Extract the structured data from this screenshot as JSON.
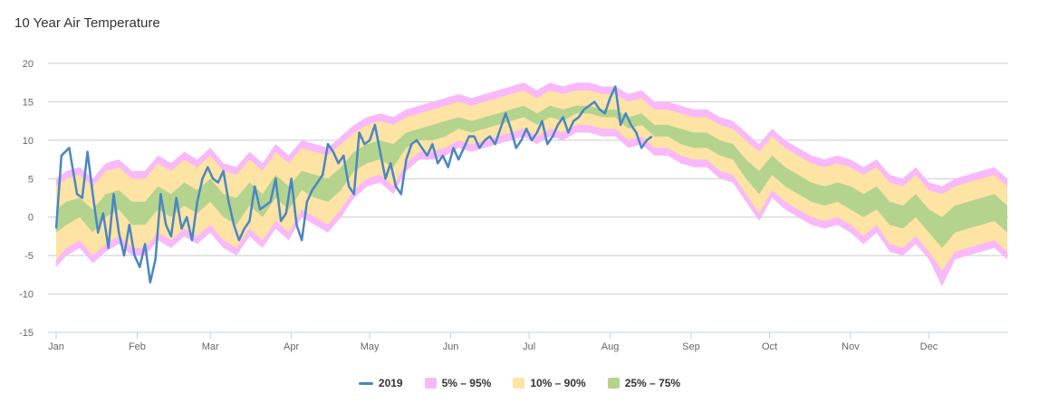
{
  "colors": {
    "band_5_95": "#f9b8f9",
    "band_10_90": "#fde3a4",
    "band_25_75": "#b4d48e",
    "line_2019": "#4a86c2",
    "grid": "#cccccc",
    "axis": "#c0d0e0"
  },
  "chart_data": {
    "type": "area",
    "title": "10 Year Air Temperature",
    "xlabel": "",
    "ylabel": "",
    "ylim": [
      -15,
      20
    ],
    "yticks": [
      20,
      15,
      10,
      5,
      0,
      -5,
      -10,
      -15
    ],
    "xlim": [
      1,
      365
    ],
    "months": [
      {
        "label": "Jan",
        "day": 1
      },
      {
        "label": "Feb",
        "day": 32
      },
      {
        "label": "Mar",
        "day": 60
      },
      {
        "label": "Apr",
        "day": 91
      },
      {
        "label": "May",
        "day": 121
      },
      {
        "label": "Jun",
        "day": 152
      },
      {
        "label": "Jul",
        "day": 182
      },
      {
        "label": "Aug",
        "day": 213
      },
      {
        "label": "Sep",
        "day": 244
      },
      {
        "label": "Oct",
        "day": 274
      },
      {
        "label": "Nov",
        "day": 305
      },
      {
        "label": "Dec",
        "day": 335
      }
    ],
    "legend": [
      {
        "name": "2019",
        "kind": "line",
        "color": "#4a86c2"
      },
      {
        "name": "5% – 95%",
        "kind": "area",
        "color": "#f9b8f9"
      },
      {
        "name": "10% – 90%",
        "kind": "area",
        "color": "#fde3a4"
      },
      {
        "name": "25% – 75%",
        "kind": "area",
        "color": "#b4d48e"
      }
    ],
    "bands": {
      "day": [
        1,
        5,
        10,
        15,
        20,
        25,
        30,
        35,
        40,
        45,
        50,
        55,
        60,
        65,
        70,
        75,
        80,
        85,
        90,
        95,
        100,
        105,
        110,
        115,
        120,
        125,
        130,
        135,
        140,
        145,
        150,
        155,
        160,
        165,
        170,
        175,
        180,
        185,
        190,
        195,
        200,
        205,
        210,
        215,
        220,
        225,
        230,
        235,
        240,
        245,
        250,
        255,
        260,
        265,
        270,
        275,
        280,
        285,
        290,
        295,
        300,
        305,
        310,
        315,
        320,
        325,
        330,
        335,
        340,
        345,
        350,
        355,
        360,
        365
      ],
      "p5": [
        -6.5,
        -5,
        -4,
        -6,
        -4.5,
        -3.5,
        -5,
        -5,
        -3,
        -4,
        -2.5,
        -3.5,
        -2,
        -4,
        -5,
        -2.5,
        -4,
        -1.5,
        -3,
        0,
        -1,
        -2,
        0,
        2.5,
        4,
        4.5,
        3,
        6,
        7.5,
        7.5,
        8,
        9,
        8.5,
        9,
        9.5,
        10,
        10.5,
        9.5,
        10.5,
        10,
        11,
        11,
        10.5,
        10.5,
        9,
        9.5,
        8,
        8,
        7,
        6.5,
        6.5,
        5,
        4.5,
        2,
        -0.5,
        2.5,
        1,
        0,
        -1,
        -1.5,
        -1,
        -2,
        -3.5,
        -2,
        -4.5,
        -5,
        -3.5,
        -5.5,
        -9,
        -5.5,
        -5,
        -4.5,
        -4,
        -5.5
      ],
      "p10": [
        -5.5,
        -4,
        -3,
        -5,
        -3.5,
        -2.5,
        -4,
        -4,
        -2,
        -3,
        -1.5,
        -2.5,
        -1,
        -3,
        -4,
        -1.5,
        -3,
        -0.5,
        -2,
        1,
        0,
        -1,
        1,
        3.5,
        5,
        5.5,
        4,
        7,
        8.5,
        8.5,
        9,
        10,
        9.5,
        10,
        10.5,
        11,
        11.5,
        10.5,
        11.5,
        11,
        12,
        12,
        11.5,
        11.5,
        10,
        10.5,
        9,
        9,
        8,
        7.5,
        7.5,
        6,
        5.5,
        3,
        0.5,
        3.5,
        2,
        1,
        0,
        -0.5,
        0,
        -1,
        -2.5,
        -1,
        -3.5,
        -4,
        -2.5,
        -4.5,
        -7,
        -4.5,
        -4,
        -3.5,
        -3,
        -4.5
      ],
      "p25": [
        -2,
        -1,
        0,
        -2,
        0,
        1,
        -1,
        -1,
        1,
        0,
        1.5,
        0.5,
        2,
        0,
        -1,
        1.5,
        0,
        2.5,
        1,
        3.5,
        2.5,
        2,
        3.5,
        6,
        7,
        7.5,
        6.5,
        9,
        10,
        10,
        10.5,
        11.5,
        11,
        11.5,
        12,
        12.5,
        13,
        12,
        13,
        12.5,
        13.5,
        13.5,
        13,
        13,
        11.5,
        12,
        10.5,
        10.5,
        9.5,
        9,
        9,
        8,
        7.5,
        5,
        3,
        5.5,
        4,
        3,
        2,
        1.5,
        2,
        1,
        0,
        1,
        -1,
        -1.5,
        0,
        -2,
        -4,
        -2,
        -1.5,
        -1,
        -0.5,
        -2
      ],
      "p75": [
        1,
        2,
        2.5,
        1,
        3,
        3.5,
        2,
        2,
        4,
        3,
        4.5,
        3.5,
        5,
        3,
        2.5,
        4.5,
        3,
        5.5,
        4,
        6,
        5.5,
        5,
        6.5,
        8.5,
        9.5,
        10,
        9.5,
        11,
        11.5,
        12,
        12.5,
        13,
        12.5,
        13,
        13.5,
        14,
        14.5,
        13.5,
        14.5,
        14,
        14.5,
        14.5,
        14,
        14,
        13,
        13.5,
        12,
        12,
        11.5,
        11,
        11,
        10,
        9.5,
        7.5,
        6,
        8,
        6.5,
        5.5,
        4.5,
        4,
        4.5,
        4,
        3,
        4,
        2,
        1.5,
        3,
        1,
        0,
        1.5,
        2,
        2.5,
        3,
        1.5
      ],
      "p90": [
        4,
        5,
        5.5,
        4,
        6,
        6.5,
        5,
        5,
        7,
        6,
        7.5,
        6.5,
        8,
        6,
        5.5,
        7.5,
        6,
        8.5,
        7,
        9,
        8.5,
        8,
        9.5,
        11,
        12,
        12.5,
        12,
        13,
        13.5,
        14,
        14.5,
        15,
        14.5,
        15,
        15.5,
        16,
        16.5,
        15.5,
        16.5,
        16,
        16.5,
        16.5,
        16,
        16,
        15,
        15.5,
        14,
        14,
        13.5,
        13,
        13,
        12,
        11.5,
        10,
        8.5,
        10.5,
        9,
        8,
        7,
        6.5,
        7,
        6.5,
        5.5,
        6.5,
        4.5,
        4,
        5.5,
        3.5,
        3,
        4,
        4.5,
        5,
        5.5,
        4
      ],
      "p95": [
        5,
        6,
        6.5,
        5,
        7,
        7.5,
        6,
        6,
        8,
        7,
        8.5,
        7.5,
        9,
        7,
        6.5,
        8.5,
        7,
        9.5,
        8,
        10,
        9.5,
        9,
        10.5,
        12,
        13,
        13.5,
        13,
        14,
        14.5,
        15,
        15.5,
        16,
        15.5,
        16,
        16.5,
        17,
        17.5,
        16.5,
        17.5,
        17,
        17.5,
        17.5,
        17,
        17,
        16,
        16.5,
        15,
        15,
        14.5,
        14,
        14,
        13,
        12.5,
        11,
        9.5,
        11.5,
        10,
        9,
        8,
        7.5,
        8,
        7.5,
        6.5,
        7.5,
        5.5,
        5,
        6.5,
        4.5,
        4,
        5,
        5.5,
        6,
        6.5,
        5
      ]
    },
    "series_2019": {
      "name": "2019",
      "day": [
        1,
        3,
        6,
        9,
        11,
        13,
        15,
        17,
        19,
        21,
        23,
        25,
        27,
        29,
        31,
        33,
        35,
        37,
        39,
        41,
        43,
        45,
        47,
        49,
        51,
        53,
        55,
        57,
        59,
        61,
        63,
        65,
        67,
        69,
        71,
        73,
        75,
        77,
        79,
        81,
        83,
        85,
        87,
        89,
        91,
        93,
        95,
        97,
        99,
        101,
        103,
        105,
        107,
        109,
        111,
        113,
        115,
        117,
        119,
        121,
        123,
        125,
        127,
        129,
        131,
        133,
        135,
        137,
        139,
        141,
        143,
        145,
        147,
        149,
        151,
        153,
        155,
        157,
        159,
        161,
        163,
        165,
        167,
        169,
        171,
        173,
        175,
        177,
        179,
        181,
        183,
        185,
        187,
        189,
        191,
        193,
        195,
        197,
        199,
        201,
        203,
        205,
        207,
        209,
        211,
        213,
        215,
        217,
        219,
        221,
        223,
        225,
        227,
        229
      ],
      "value": [
        -1.5,
        8,
        9,
        3,
        2.5,
        8.5,
        3,
        -2,
        0.5,
        -4,
        3,
        -2,
        -5,
        -1,
        -5,
        -6.5,
        -3.5,
        -8.5,
        -5.5,
        3,
        -1,
        -2.5,
        2.5,
        -1.5,
        0,
        -3,
        2,
        5,
        6.5,
        5,
        4.5,
        6,
        2,
        -1,
        -3,
        -1.5,
        -0.5,
        4,
        1,
        1.5,
        2,
        5,
        -0.5,
        0.5,
        5,
        -1,
        -3,
        2,
        3.5,
        4.5,
        5.5,
        9.5,
        8.5,
        7,
        8,
        4,
        3,
        11,
        9.5,
        10,
        12,
        8.5,
        5,
        7,
        4,
        3,
        7.5,
        9.5,
        10,
        9,
        8,
        9.5,
        7,
        8,
        6.5,
        9,
        7.5,
        9,
        10.5,
        10.5,
        9,
        10,
        10.5,
        9.5,
        11.5,
        13.5,
        11.5,
        9,
        10,
        11.5,
        10,
        11,
        12.5,
        9.5,
        10.5,
        12,
        13,
        11,
        12.5,
        13,
        14,
        14.5,
        15,
        14,
        13.5,
        15.5,
        17,
        12,
        13.5,
        12,
        11,
        9,
        10,
        10.5
      ]
    }
  }
}
